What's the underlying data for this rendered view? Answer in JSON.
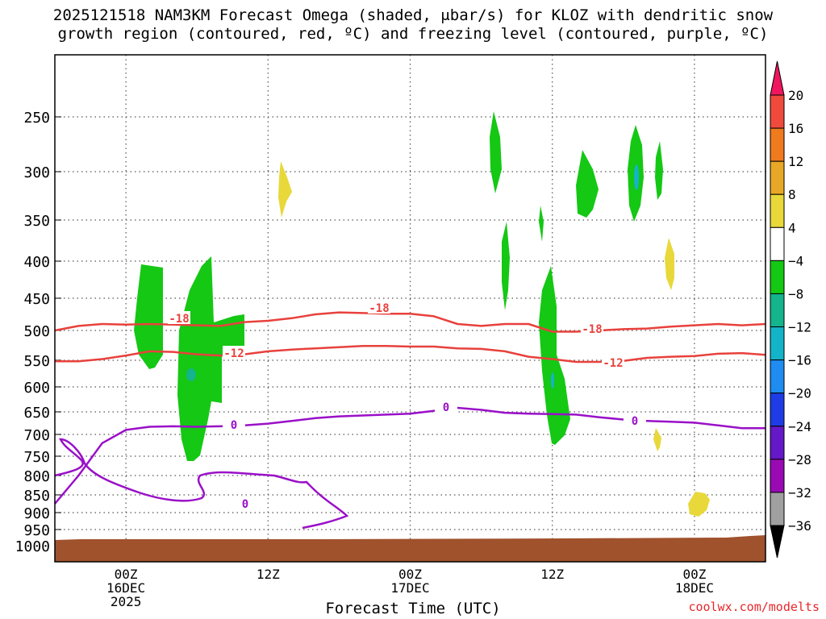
{
  "chart_data": {
    "type": "contour",
    "title_line1": "2025121518 NAM3KM Forecast Omega (shaded, μbar/s) for KLOZ with dendritic snow",
    "title_line2": "growth region (contoured, red, ºC) and freezing level (contoured, purple, ºC)",
    "xlabel": "Forecast Time (UTC)",
    "credit": "coolwx.com/modelts",
    "x_ticks": [
      {
        "hour": 6,
        "label1": "00Z",
        "label2": "16DEC",
        "label3": "2025"
      },
      {
        "hour": 18,
        "label1": "12Z",
        "label2": "",
        "label3": ""
      },
      {
        "hour": 30,
        "label1": "00Z",
        "label2": "17DEC",
        "label3": ""
      },
      {
        "hour": 42,
        "label1": "12Z",
        "label2": "",
        "label3": ""
      },
      {
        "hour": 54,
        "label1": "00Z",
        "label2": "18DEC",
        "label3": ""
      }
    ],
    "xlim": [
      0,
      60
    ],
    "y_ticks": [
      250,
      300,
      350,
      400,
      450,
      500,
      550,
      600,
      650,
      700,
      750,
      800,
      850,
      900,
      950,
      1000
    ],
    "ylim_mb": [
      200,
      1000
    ],
    "colorbar": {
      "labels": [
        "20",
        "16",
        "12",
        "8",
        "4",
        "−4",
        "−8",
        "−12",
        "−16",
        "−20",
        "−24",
        "−28",
        "−32",
        "−36"
      ],
      "colors": [
        "#f0155f",
        "#f04a3c",
        "#f07a1e",
        "#e8a726",
        "#e8d83a",
        "#ffffff",
        "#14c814",
        "#14b48c",
        "#14b4c8",
        "#1e8cf0",
        "#1e3ce6",
        "#6418c8",
        "#9a0ab4",
        "#a0a0a0",
        "#000000"
      ]
    },
    "contour_labels": {
      "dgz_upper": "-18",
      "dgz_lower": "-12",
      "freezing": "0"
    },
    "series": [
      {
        "name": "-18C isotherm (mb)",
        "x": [
          0,
          2,
          4,
          6,
          8,
          10,
          12,
          14,
          16,
          18,
          20,
          22,
          24,
          26,
          28,
          30,
          32,
          34,
          36,
          38,
          40,
          42,
          44,
          46,
          48,
          50,
          52,
          54,
          56,
          58,
          60
        ],
        "values": [
          500,
          493,
          490,
          491,
          490,
          491,
          492,
          493,
          487,
          485,
          481,
          475,
          472,
          473,
          474,
          474,
          478,
          490,
          493,
          490,
          490,
          502,
          502,
          500,
          498,
          497,
          494,
          492,
          490,
          492,
          490
        ]
      },
      {
        "name": "-12C isotherm (mb)",
        "x": [
          0,
          2,
          4,
          6,
          8,
          10,
          12,
          14,
          16,
          18,
          20,
          22,
          24,
          26,
          28,
          30,
          32,
          34,
          36,
          38,
          40,
          42,
          44,
          46,
          48,
          50,
          52,
          54,
          56,
          58,
          60
        ],
        "values": [
          552,
          552,
          548,
          542,
          535,
          536,
          540,
          542,
          540,
          535,
          532,
          530,
          528,
          526,
          526,
          527,
          527,
          530,
          531,
          535,
          544,
          548,
          553,
          553,
          551,
          546,
          544,
          543,
          539,
          538,
          541
        ]
      },
      {
        "name": "0C freezing level (mb)",
        "x": [
          0,
          2,
          4,
          6,
          8,
          10,
          12,
          14,
          16,
          18,
          20,
          22,
          24,
          26,
          28,
          30,
          32,
          34,
          36,
          38,
          40,
          42,
          44,
          46,
          48,
          50,
          52,
          54,
          56,
          58,
          60
        ],
        "values": [
          875,
          800,
          720,
          690,
          683,
          682,
          683,
          682,
          680,
          676,
          670,
          664,
          660,
          658,
          656,
          654,
          648,
          642,
          646,
          652,
          654,
          655,
          656,
          662,
          667,
          670,
          672,
          674,
          680,
          686,
          686
        ]
      }
    ],
    "omega_regions": [
      {
        "id": "green_a1",
        "range": "-4 to -8"
      },
      {
        "id": "green_a2",
        "range": "-4 to -8"
      },
      {
        "id": "green_b1",
        "range": "-4 to -8"
      },
      {
        "id": "green_b2",
        "range": "-4 to -8"
      },
      {
        "id": "yellow_1",
        "range": "4 to 8"
      },
      {
        "id": "yellow_2",
        "range": "4 to 8"
      },
      {
        "id": "yellow_3",
        "range": "4 to 8"
      }
    ]
  }
}
